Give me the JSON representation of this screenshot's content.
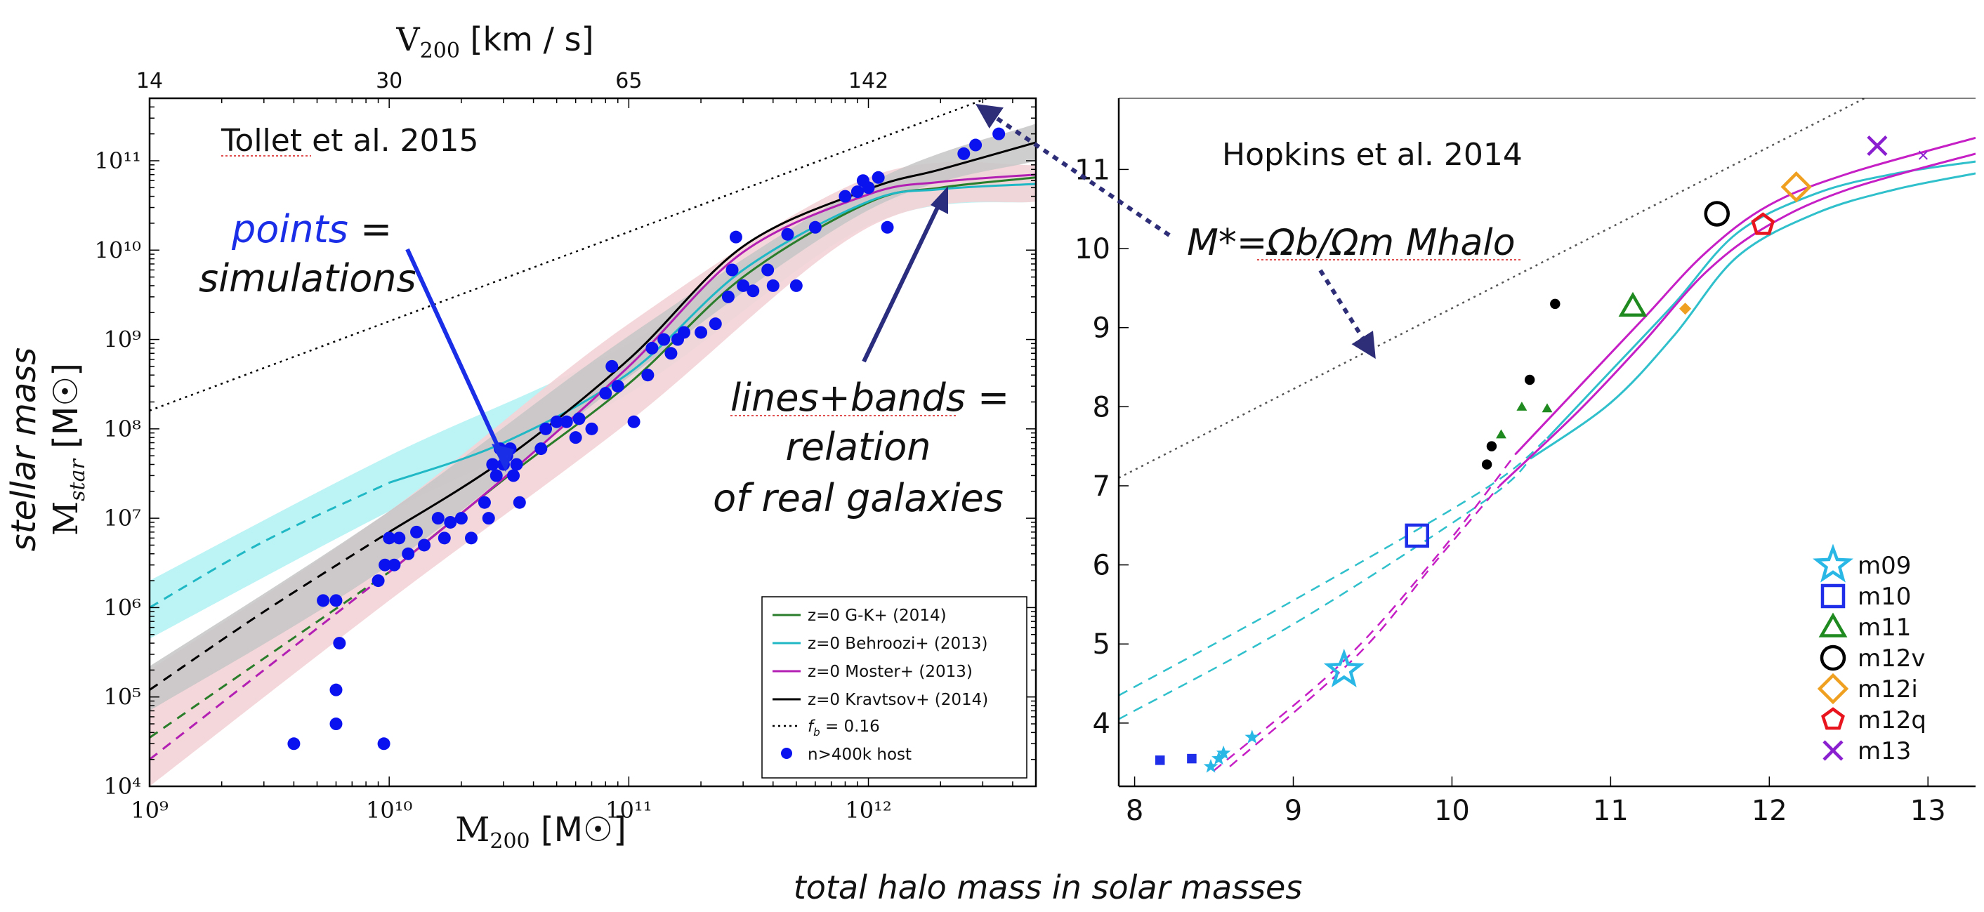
{
  "figure": {
    "bottom_caption": "total halo mass in solar masses",
    "ylabel_left": "stellar mass"
  },
  "chart_data": [
    {
      "type": "scatter",
      "panel": "left",
      "title": "Tollet et al. 2015",
      "xlabel": "M200 [M☉]",
      "ylabel": "Mstar [M☉]",
      "top_xlabel": "V200 [km / s]",
      "xscale": "log",
      "yscale": "log",
      "xlim": [
        1000000000.0,
        5000000000000.0
      ],
      "ylim": [
        10000.0,
        500000000000.0
      ],
      "xtick_labels": [
        "10⁹",
        "10¹⁰",
        "10¹¹",
        "10¹²"
      ],
      "ytick_labels": [
        "10⁴",
        "10⁵",
        "10⁶",
        "10⁷",
        "10⁸",
        "10⁹",
        "10¹⁰",
        "10¹¹"
      ],
      "top_ticks": [
        {
          "label": "14",
          "halo_mass": 1000000000.0
        },
        {
          "label": "30",
          "halo_mass": 10000000000.0
        },
        {
          "label": "65",
          "halo_mass": 100000000000.0
        },
        {
          "label": "142",
          "halo_mass": 1000000000000.0
        }
      ],
      "annotations": {
        "points_word": "points",
        "equals": "=",
        "simulations": "simulations",
        "lines_bands": "lines+bands",
        "relation": "relation",
        "of_real_galaxies": "of real galaxies"
      },
      "bands": [
        {
          "name": "Behroozi band",
          "color": "#b5f2f4",
          "x": [
            1000000000.0,
            10000000000.0,
            100000000000.0,
            1000000000000.0,
            5000000000000.0
          ],
          "lo": [
            450000.0,
            12000000.0,
            250000000.0,
            19000000000.0,
            35000000000.0
          ],
          "hi": [
            2000000.0,
            50000000.0,
            900000000.0,
            55000000000.0,
            70000000000.0
          ]
        },
        {
          "name": "Moster band",
          "color": "#f3d3d6",
          "x": [
            1000000000.0,
            10000000000.0,
            100000000000.0,
            1000000000000.0,
            5000000000000.0
          ],
          "lo": [
            10000.0,
            1200000.0,
            120000000.0,
            18000000000.0,
            35000000000.0
          ],
          "hi": [
            200000.0,
            12000000.0,
            1500000000.0,
            65000000000.0,
            90000000000.0
          ]
        },
        {
          "name": "Kravtsov band",
          "color": "#c6c6c6",
          "x": [
            1000000000.0,
            10000000000.0,
            100000000000.0,
            1000000000000.0,
            5000000000000.0
          ],
          "lo": [
            70000.0,
            3000000.0,
            380000000.0,
            28000000000.0,
            100000000000.0
          ],
          "hi": [
            220000.0,
            12000000.0,
            1100000000.0,
            55000000000.0,
            260000000000.0
          ]
        }
      ],
      "series": [
        {
          "name": "z=0 G-K+ (2014)",
          "color": "#2a7d2a",
          "dashed_below": 10000000000.0,
          "x": [
            1000000000.0,
            3000000000.0,
            10000000000.0,
            30000000000.0,
            100000000000.0,
            300000000000.0,
            1000000000000.0,
            2000000000000.0,
            5000000000000.0
          ],
          "y": [
            35000.0,
            270000.0,
            2500000.0,
            27000000.0,
            320000000.0,
            5000000000.0,
            34000000000.0,
            50000000000.0,
            65000000000.0
          ]
        },
        {
          "name": "z=0 Behroozi+ (2013)",
          "color": "#1fb8c4",
          "dashed_below": 10000000000.0,
          "x": [
            1000000000.0,
            3000000000.0,
            10000000000.0,
            30000000000.0,
            100000000000.0,
            300000000000.0,
            1000000000000.0,
            2000000000000.0,
            5000000000000.0
          ],
          "y": [
            1000000.0,
            5500000.0,
            25000000.0,
            70000000.0,
            420000000.0,
            6000000000.0,
            35000000000.0,
            48000000000.0,
            55000000000.0
          ]
        },
        {
          "name": "z=0 Moster+ (2013)",
          "color": "#b31fb3",
          "dashed_below": 10000000000.0,
          "x": [
            1000000000.0,
            3000000000.0,
            10000000000.0,
            30000000000.0,
            100000000000.0,
            300000000000.0,
            1000000000000.0,
            2000000000000.0,
            5000000000000.0
          ],
          "y": [
            20000.0,
            200000.0,
            2500000.0,
            28000000.0,
            500000000.0,
            9500000000.0,
            42000000000.0,
            58000000000.0,
            70000000000.0
          ]
        },
        {
          "name": "z=0 Kravtsov+ (2014)",
          "color": "#000000",
          "dashed_below": 10000000000.0,
          "x": [
            1000000000.0,
            3000000000.0,
            10000000000.0,
            30000000000.0,
            100000000000.0,
            300000000000.0,
            1000000000000.0,
            2000000000000.0,
            5000000000000.0
          ],
          "y": [
            120000.0,
            900000.0,
            7000000.0,
            45000000.0,
            600000000.0,
            11000000000.0,
            48000000000.0,
            80000000000.0,
            160000000000.0
          ]
        },
        {
          "name": "f_b = 0.16",
          "color": "#000000",
          "dotted": true,
          "x": [
            1000000000.0,
            5000000000000.0
          ],
          "y": [
            160000000.0,
            800000000000.0
          ]
        }
      ],
      "legend_labels": [
        "z=0 G-K+ (2014)",
        "z=0 Behroozi+ (2013)",
        "z=0 Moster+ (2013)",
        "z=0 Kravtsov+ (2014)",
        "f",
        "b",
        " = 0.16",
        "n>400k host"
      ],
      "points": {
        "name": "n>400k host",
        "color": "#0b12f0",
        "x": [
          4000000000.0,
          6000000000.0,
          6000000000.0,
          6200000000.0,
          9500000000.0,
          6000000000.0,
          5300000000.0,
          9000000000.0,
          9600000000.0,
          10500000000.0,
          11000000000.0,
          12000000000.0,
          10000000000.0,
          13000000000.0,
          14000000000.0,
          16000000000.0,
          17000000000.0,
          18000000000.0,
          20000000000.0,
          22000000000.0,
          25000000000.0,
          26000000000.0,
          28000000000.0,
          30000000000.0,
          31000000000.0,
          33000000000.0,
          32000000000.0,
          35000000000.0,
          27000000000.0,
          29000000000.0,
          34000000000.0,
          43000000000.0,
          45000000000.0,
          50000000000.0,
          55000000000.0,
          60000000000.0,
          62000000000.0,
          70000000000.0,
          80000000000.0,
          85000000000.0,
          90000000000.0,
          120000000000.0,
          105000000000.0,
          125000000000.0,
          140000000000.0,
          150000000000.0,
          160000000000.0,
          170000000000.0,
          200000000000.0,
          230000000000.0,
          260000000000.0,
          270000000000.0,
          280000000000.0,
          300000000000.0,
          330000000000.0,
          380000000000.0,
          400000000000.0,
          460000000000.0,
          500000000000.0,
          600000000000.0,
          800000000000.0,
          900000000000.0,
          950000000000.0,
          1000000000000.0,
          1100000000000.0,
          1200000000000.0,
          2500000000000.0,
          2800000000000.0,
          3500000000000.0
        ],
        "y": [
          30000.0,
          50000.0,
          120000.0,
          400000.0,
          30000.0,
          1200000.0,
          1200000.0,
          2000000.0,
          3000000.0,
          3000000.0,
          6000000.0,
          4000000.0,
          6000000.0,
          7000000.0,
          5000000.0,
          10000000.0,
          6000000.0,
          9000000.0,
          10000000.0,
          6000000.0,
          15000000.0,
          10000000.0,
          30000000.0,
          40000000.0,
          50000000.0,
          30000000.0,
          60000000.0,
          15000000.0,
          40000000.0,
          60000000.0,
          40000000.0,
          60000000.0,
          100000000.0,
          120000000.0,
          120000000.0,
          80000000.0,
          130000000.0,
          100000000.0,
          250000000.0,
          500000000.0,
          300000000.0,
          400000000.0,
          120000000.0,
          800000000.0,
          1000000000.0,
          700000000.0,
          1000000000.0,
          1200000000.0,
          1200000000.0,
          1500000000.0,
          3000000000.0,
          6000000000.0,
          14000000000.0,
          4000000000.0,
          3500000000.0,
          6000000000.0,
          4000000000.0,
          15000000000.0,
          4000000000.0,
          18000000000.0,
          40000000000.0,
          45000000000.0,
          60000000000.0,
          50000000000.0,
          65000000000.0,
          18000000000.0,
          120000000000.0,
          150000000000.0,
          200000000000.0
        ]
      },
      "arrow_label": "M*=Ωb/Ωm Mhalo"
    },
    {
      "type": "scatter",
      "panel": "right",
      "title": "Hopkins et al. 2014",
      "xlim": [
        7.9,
        13.3
      ],
      "ylim": [
        3.2,
        11.9
      ],
      "xtick_labels": [
        "8",
        "9",
        "10",
        "11",
        "12",
        "13"
      ],
      "ytick_labels": [
        "4",
        "5",
        "6",
        "7",
        "8",
        "9",
        "10",
        "11"
      ],
      "series": [
        {
          "name": "cyan relation 1",
          "color": "#2fc0cc",
          "dashed_below": 10.6,
          "x": [
            7.9,
            9.0,
            10.2,
            10.6,
            11.0,
            11.4,
            11.8,
            12.3,
            12.8,
            13.3
          ],
          "y": [
            4.35,
            5.55,
            6.95,
            7.6,
            8.45,
            9.3,
            10.2,
            10.7,
            10.95,
            11.1
          ]
        },
        {
          "name": "cyan relation 2",
          "color": "#2fc0cc",
          "dashed_below": 10.5,
          "x": [
            7.9,
            9.0,
            10.2,
            10.5,
            11.0,
            11.4,
            11.8,
            12.3,
            12.8,
            13.3
          ],
          "y": [
            4.05,
            5.25,
            6.8,
            7.35,
            8.05,
            8.9,
            9.9,
            10.45,
            10.75,
            10.95
          ]
        },
        {
          "name": "magenta relation 1",
          "color": "#c51fc5",
          "dashed_below": 10.4,
          "x": [
            8.5,
            9.3,
            9.9,
            10.4,
            10.8,
            11.2,
            11.6,
            12.0,
            12.5,
            13.3
          ],
          "y": [
            3.4,
            4.75,
            6.1,
            7.4,
            8.25,
            9.1,
            9.95,
            10.55,
            10.95,
            11.4
          ]
        },
        {
          "name": "magenta relation 2",
          "color": "#c51fc5",
          "dashed_below": 10.3,
          "x": [
            8.6,
            9.4,
            9.9,
            10.3,
            10.8,
            11.2,
            11.6,
            12.0,
            12.5,
            13.3
          ],
          "y": [
            3.45,
            4.85,
            6.05,
            7.0,
            7.95,
            8.8,
            9.7,
            10.3,
            10.75,
            11.2
          ]
        },
        {
          "name": "baryon fraction line",
          "color": "#555555",
          "dotted": true,
          "x": [
            7.9,
            12.6
          ],
          "y": [
            7.1,
            11.9
          ]
        }
      ],
      "legend": [
        {
          "label": "m09",
          "color": "#29b8e6",
          "marker": "star"
        },
        {
          "label": "m10",
          "color": "#1f2ee8",
          "marker": "square"
        },
        {
          "label": "m11",
          "color": "#1f8a1f",
          "marker": "triangle"
        },
        {
          "label": "m12v",
          "color": "#000000",
          "marker": "circle"
        },
        {
          "label": "m12i",
          "color": "#f0a020",
          "marker": "diamond"
        },
        {
          "label": "m12q",
          "color": "#e8141e",
          "marker": "pentagon"
        },
        {
          "label": "m13",
          "color": "#8a1fd0",
          "marker": "x"
        }
      ],
      "points": [
        {
          "group": "m09",
          "x": 9.32,
          "y": 4.67,
          "marker": "star",
          "size": "large",
          "color": "#29b8e6"
        },
        {
          "group": "m10",
          "x": 9.78,
          "y": 6.37,
          "marker": "square",
          "size": "large",
          "color": "#1f2ee8"
        },
        {
          "group": "m11",
          "x": 11.14,
          "y": 9.27,
          "marker": "triangle",
          "size": "large",
          "color": "#1f8a1f"
        },
        {
          "group": "m12v",
          "x": 11.67,
          "y": 10.44,
          "marker": "circle",
          "size": "large",
          "color": "#000000"
        },
        {
          "group": "m12i",
          "x": 12.17,
          "y": 10.78,
          "marker": "diamond",
          "size": "large",
          "color": "#f0a020"
        },
        {
          "group": "m12q",
          "x": 11.96,
          "y": 10.3,
          "marker": "pentagon",
          "size": "large",
          "color": "#e8141e"
        },
        {
          "group": "m13",
          "x": 12.68,
          "y": 11.3,
          "marker": "x",
          "size": "large",
          "color": "#8a1fd0"
        },
        {
          "group": "m09",
          "x": 8.48,
          "y": 3.45,
          "marker": "star",
          "size": "small",
          "color": "#29b8e6"
        },
        {
          "group": "m09",
          "x": 8.53,
          "y": 3.55,
          "marker": "star",
          "size": "small",
          "color": "#29b8e6"
        },
        {
          "group": "m09",
          "x": 8.56,
          "y": 3.62,
          "marker": "star",
          "size": "small",
          "color": "#29b8e6"
        },
        {
          "group": "m09",
          "x": 8.74,
          "y": 3.82,
          "marker": "star",
          "size": "small",
          "color": "#29b8e6"
        },
        {
          "group": "m10",
          "x": 8.16,
          "y": 3.53,
          "marker": "square",
          "size": "small",
          "color": "#1f2ee8"
        },
        {
          "group": "m10",
          "x": 8.36,
          "y": 3.55,
          "marker": "square",
          "size": "small",
          "color": "#1f2ee8"
        },
        {
          "group": "m11",
          "x": 10.31,
          "y": 7.65,
          "marker": "triangle",
          "size": "small",
          "color": "#1f8a1f"
        },
        {
          "group": "m11",
          "x": 10.44,
          "y": 8.0,
          "marker": "triangle",
          "size": "small",
          "color": "#1f8a1f"
        },
        {
          "group": "m11",
          "x": 10.6,
          "y": 7.98,
          "marker": "triangle",
          "size": "small",
          "color": "#1f8a1f"
        },
        {
          "group": "m12v",
          "x": 10.22,
          "y": 7.27,
          "marker": "circle",
          "size": "small",
          "color": "#000000"
        },
        {
          "group": "m12v",
          "x": 10.25,
          "y": 7.5,
          "marker": "circle",
          "size": "small",
          "color": "#000000"
        },
        {
          "group": "m12v",
          "x": 10.49,
          "y": 8.34,
          "marker": "circle",
          "size": "small",
          "color": "#000000"
        },
        {
          "group": "m12v",
          "x": 10.65,
          "y": 9.3,
          "marker": "circle",
          "size": "small",
          "color": "#000000"
        },
        {
          "group": "m12i",
          "x": 11.47,
          "y": 9.24,
          "marker": "diamond",
          "size": "small",
          "color": "#f0a020"
        },
        {
          "group": "m13",
          "x": 12.97,
          "y": 11.18,
          "marker": "x",
          "size": "small",
          "color": "#8a1fd0"
        }
      ]
    }
  ]
}
